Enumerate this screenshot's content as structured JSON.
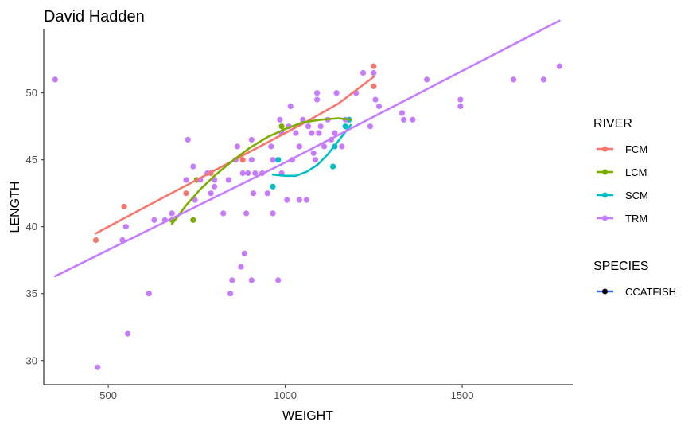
{
  "chart_data": {
    "type": "scatter",
    "title": "David Hadden",
    "xlabel": "WEIGHT",
    "ylabel": "LENGTH",
    "xlim": [
      320,
      1810
    ],
    "ylim": [
      28.2,
      54.8
    ],
    "xticks": [
      500,
      1000,
      1500
    ],
    "yticks": [
      30,
      35,
      40,
      45,
      50
    ],
    "grid": false,
    "legend_position": "right",
    "legends": [
      {
        "title": "RIVER",
        "entries": [
          {
            "name": "FCM",
            "color": "#F8766D"
          },
          {
            "name": "LCM",
            "color": "#7CAE00"
          },
          {
            "name": "SCM",
            "color": "#00BFC4"
          },
          {
            "name": "TRM",
            "color": "#C77CFF"
          }
        ]
      },
      {
        "title": "SPECIES",
        "entries": [
          {
            "name": "CCATFISH",
            "color": "#000000",
            "line_color": "#3366FF"
          }
        ]
      }
    ],
    "series": [
      {
        "name": "FCM",
        "color": "#F8766D",
        "points": [
          [
            465,
            39
          ],
          [
            545,
            41.5
          ],
          [
            720,
            42.5
          ],
          [
            790,
            44
          ],
          [
            880,
            45
          ],
          [
            1250,
            52
          ],
          [
            1250,
            50.5
          ]
        ],
        "fit": [
          [
            465,
            39.5
          ],
          [
            550,
            40.7
          ],
          [
            650,
            42.1
          ],
          [
            750,
            43.5
          ],
          [
            850,
            44.9
          ],
          [
            950,
            46.3
          ],
          [
            1050,
            47.7
          ],
          [
            1150,
            49.2
          ],
          [
            1250,
            51.2
          ]
        ]
      },
      {
        "name": "LCM",
        "color": "#7CAE00",
        "points": [
          [
            680,
            40.5
          ],
          [
            740,
            40.5
          ],
          [
            750,
            43.5
          ],
          [
            990,
            47.5
          ],
          [
            1180,
            48
          ]
        ],
        "fit": [
          [
            680,
            40.2
          ],
          [
            720,
            41.6
          ],
          [
            760,
            42.8
          ],
          [
            800,
            43.8
          ],
          [
            850,
            44.9
          ],
          [
            900,
            45.9
          ],
          [
            950,
            46.7
          ],
          [
            1000,
            47.3
          ],
          [
            1050,
            47.8
          ],
          [
            1100,
            48
          ],
          [
            1150,
            48.1
          ],
          [
            1185,
            48
          ]
        ]
      },
      {
        "name": "SCM",
        "color": "#00BFC4",
        "points": [
          [
            965,
            43
          ],
          [
            980,
            45
          ],
          [
            1135,
            44.5
          ],
          [
            1140,
            46
          ],
          [
            1170,
            47.5
          ],
          [
            1180,
            48
          ]
        ],
        "fit": [
          [
            965,
            43.9
          ],
          [
            1000,
            43.8
          ],
          [
            1030,
            43.8
          ],
          [
            1060,
            44.1
          ],
          [
            1090,
            44.6
          ],
          [
            1120,
            45.4
          ],
          [
            1150,
            46.4
          ],
          [
            1185,
            47.6
          ]
        ]
      },
      {
        "name": "TRM",
        "color": "#C77CFF",
        "points": [
          [
            350,
            51
          ],
          [
            470,
            29.5
          ],
          [
            540,
            39
          ],
          [
            550,
            40
          ],
          [
            555,
            32
          ],
          [
            615,
            35
          ],
          [
            630,
            40.5
          ],
          [
            660,
            40.5
          ],
          [
            680,
            41
          ],
          [
            720,
            43.5
          ],
          [
            725,
            46.5
          ],
          [
            740,
            44.5
          ],
          [
            745,
            42
          ],
          [
            760,
            43.5
          ],
          [
            780,
            44
          ],
          [
            790,
            42.5
          ],
          [
            800,
            43
          ],
          [
            800,
            43.5
          ],
          [
            825,
            41
          ],
          [
            840,
            43.5
          ],
          [
            845,
            35
          ],
          [
            850,
            36
          ],
          [
            860,
            45
          ],
          [
            865,
            46
          ],
          [
            875,
            37
          ],
          [
            880,
            44
          ],
          [
            885,
            38
          ],
          [
            890,
            41
          ],
          [
            895,
            44
          ],
          [
            905,
            46.5
          ],
          [
            905,
            45
          ],
          [
            905,
            36
          ],
          [
            910,
            42.5
          ],
          [
            915,
            44
          ],
          [
            935,
            44
          ],
          [
            950,
            42.5
          ],
          [
            960,
            46
          ],
          [
            965,
            45
          ],
          [
            965,
            41
          ],
          [
            980,
            36
          ],
          [
            985,
            48
          ],
          [
            990,
            44
          ],
          [
            990,
            47
          ],
          [
            1005,
            42
          ],
          [
            1010,
            47.5
          ],
          [
            1015,
            49
          ],
          [
            1020,
            45
          ],
          [
            1030,
            47
          ],
          [
            1040,
            42
          ],
          [
            1040,
            46
          ],
          [
            1050,
            48
          ],
          [
            1060,
            42
          ],
          [
            1065,
            47.5
          ],
          [
            1075,
            47
          ],
          [
            1080,
            45.5
          ],
          [
            1085,
            45
          ],
          [
            1090,
            49.5
          ],
          [
            1090,
            50
          ],
          [
            1095,
            47
          ],
          [
            1100,
            47.5
          ],
          [
            1110,
            46
          ],
          [
            1120,
            48
          ],
          [
            1130,
            46.5
          ],
          [
            1140,
            47
          ],
          [
            1145,
            50
          ],
          [
            1160,
            46
          ],
          [
            1170,
            48
          ],
          [
            1200,
            50
          ],
          [
            1220,
            51.5
          ],
          [
            1240,
            47.5
          ],
          [
            1250,
            51.5
          ],
          [
            1255,
            49.5
          ],
          [
            1265,
            49
          ],
          [
            1330,
            48.5
          ],
          [
            1335,
            48
          ],
          [
            1360,
            48
          ],
          [
            1400,
            51
          ],
          [
            1495,
            49.5
          ],
          [
            1495,
            49
          ],
          [
            1645,
            51
          ],
          [
            1730,
            51
          ],
          [
            1775,
            52
          ]
        ],
        "fit": [
          [
            350,
            36.3
          ],
          [
            1000,
            44.8
          ],
          [
            1775,
            55.4
          ]
        ]
      }
    ]
  }
}
